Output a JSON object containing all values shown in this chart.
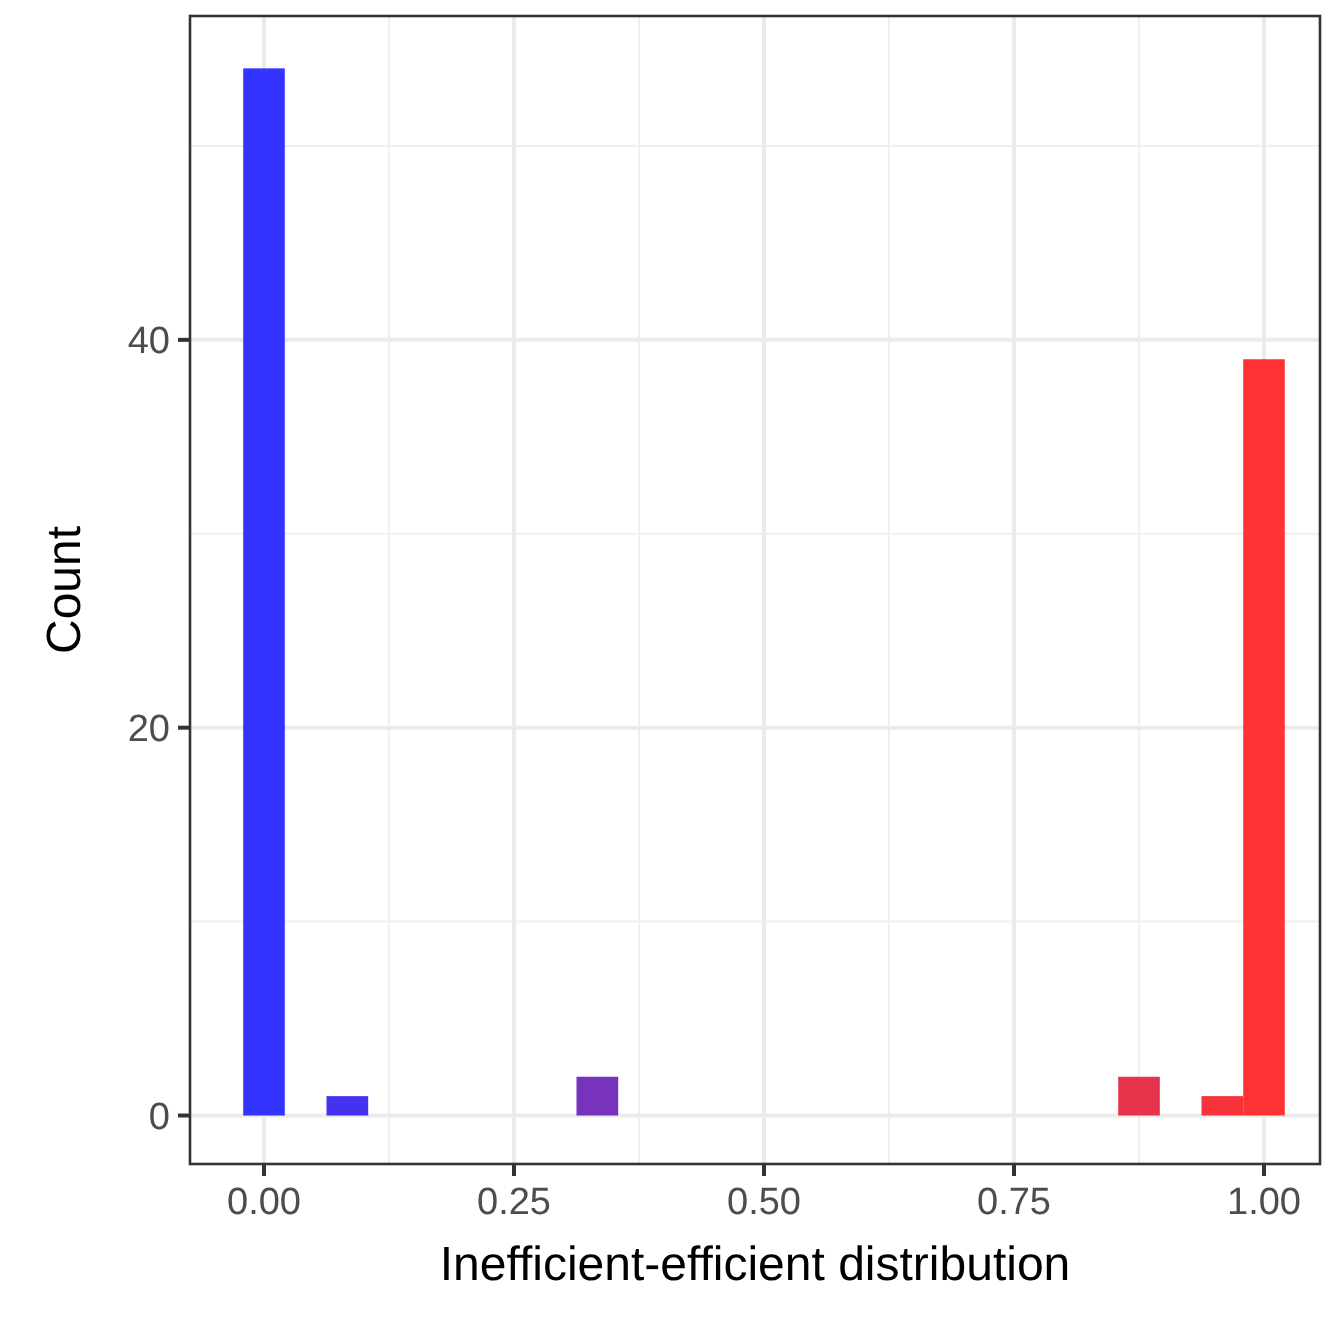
{
  "chart_data": {
    "type": "histogram",
    "xlabel": "Inefficient-efficient distribution",
    "ylabel": "Count",
    "bins": [
      -0.0208,
      0.0208,
      0.0625,
      0.1042,
      0.1458,
      0.1875,
      0.2292,
      0.2708,
      0.3125,
      0.3542,
      0.3958,
      0.4375,
      0.4792,
      0.5208,
      0.5625,
      0.6042,
      0.6458,
      0.6875,
      0.7292,
      0.7708,
      0.8125,
      0.8542,
      0.8958,
      0.9375,
      0.9792,
      1.0208
    ],
    "values": [
      54,
      0,
      1,
      0,
      0,
      0,
      0,
      0,
      2,
      0,
      0,
      0,
      0,
      0,
      0,
      0,
      0,
      0,
      0,
      0,
      0,
      2,
      0,
      1,
      39
    ],
    "colors": [
      "#3333ff",
      "#3b33f6",
      "#4433ee",
      "#4c33e5",
      "#5533dd",
      "#5d33d4",
      "#6633cc",
      "#6e33c3",
      "#7733bb",
      "#7f33b2",
      "#8833aa",
      "#9033a1",
      "#993399",
      "#a13390",
      "#aa3388",
      "#b2337f",
      "#bb3377",
      "#c3336e",
      "#cc3366",
      "#d4335d",
      "#dd3355",
      "#e5334c",
      "#ee3344",
      "#f6333b",
      "#ff3333"
    ],
    "xlim": [
      -0.074,
      1.056
    ],
    "ylim": [
      -2.5,
      56.7
    ],
    "xticks": [
      {
        "value": 0,
        "label": "0.00"
      },
      {
        "value": 0.25,
        "label": "0.25"
      },
      {
        "value": 0.5,
        "label": "0.50"
      },
      {
        "value": 0.75,
        "label": "0.75"
      },
      {
        "value": 1,
        "label": "1.00"
      }
    ],
    "yticks": [
      0,
      20,
      40
    ],
    "grid": true
  }
}
